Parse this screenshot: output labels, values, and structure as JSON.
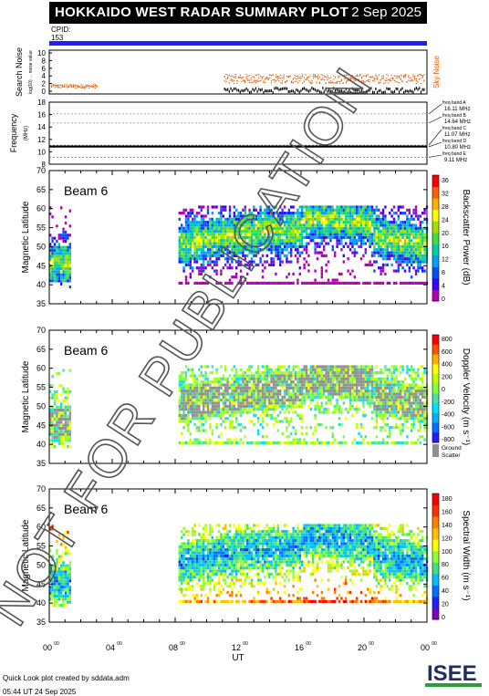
{
  "header": {
    "title": "HOKKAIDO WEST RADAR SUMMARY PLOT",
    "date": "2 Sep 2025"
  },
  "cpid": {
    "label": "CPID:",
    "value": "153",
    "bar_color": "#1f1fff"
  },
  "noise_panel": {
    "ylabel": "Search Noise",
    "sublabel": "log(10) ... noise value",
    "yticks": [
      "0",
      "2",
      "4",
      "6",
      "8",
      "10"
    ],
    "right_label": "Sky Noise",
    "right_color": "#e05a00"
  },
  "freq_panel": {
    "ylabel": "Frequency",
    "unit": "(MHz)",
    "yticks": [
      "8",
      "10",
      "12",
      "14",
      "16",
      "18"
    ],
    "bands": [
      {
        "name": "freq band A",
        "freq": "16.11 MHz"
      },
      {
        "name": "freq band B",
        "freq": "14.64 MHz"
      },
      {
        "name": "freq band C",
        "freq": "11.07 MHz"
      },
      {
        "name": "freq band D",
        "freq": "10.80 MHz"
      },
      {
        "name": "freq band E",
        "freq": "9.11 MHz"
      }
    ]
  },
  "chart_data": [
    {
      "type": "heatmap",
      "title": "Beam 6",
      "ylabel": "Magnetic Latitude",
      "ylim": [
        35,
        70
      ],
      "yticks": [
        "35",
        "40",
        "45",
        "50",
        "55",
        "60",
        "65",
        "70"
      ],
      "colorbar_label": "Backscatter Power (dB)",
      "colorbar_ticks": [
        "0",
        "4",
        "8",
        "12",
        "16",
        "20",
        "24",
        "28",
        "32",
        "36"
      ]
    },
    {
      "type": "heatmap",
      "title": "Beam 6",
      "ylabel": "Magnetic Latitude",
      "ylim": [
        35,
        70
      ],
      "yticks": [
        "35",
        "40",
        "45",
        "50",
        "55",
        "60",
        "65",
        "70"
      ],
      "colorbar_label": "Doppler Velocity (m s⁻¹)",
      "colorbar_ticks": [
        "800",
        "600",
        "400",
        "200",
        "0",
        "-200",
        "-400",
        "-600",
        "-800"
      ],
      "ground_scatter_label": "Ground Scatter"
    },
    {
      "type": "heatmap",
      "title": "Beam 6",
      "ylabel": "Magnetic Latitude",
      "ylim": [
        35,
        70
      ],
      "yticks": [
        "35",
        "40",
        "45",
        "50",
        "55",
        "60",
        "65",
        "70"
      ],
      "colorbar_label": "Spectral Width (m s⁻¹)",
      "colorbar_ticks": [
        "0",
        "20",
        "40",
        "60",
        "80",
        "100",
        "120",
        "140",
        "160",
        "180"
      ]
    }
  ],
  "x_axis": {
    "label": "UT",
    "ticks": [
      "00",
      "04",
      "08",
      "12",
      "16",
      "20",
      "00"
    ],
    "sup": "00"
  },
  "watermark": "NOT FOR PUBLICATION",
  "footer": {
    "line1": "Quick Look plot created by sddata.adm",
    "line2": "05:44 UT 24 Sep 2025"
  },
  "logo": {
    "text": "ISEE"
  }
}
